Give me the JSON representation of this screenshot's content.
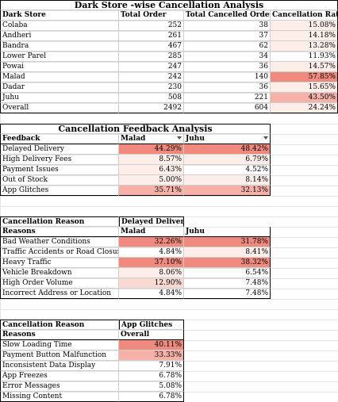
{
  "table1": {
    "title": "Dark Store -wise Cancellation Analysis",
    "headers": [
      "Dark Store",
      "Total Order",
      "Total Cancelled Orders",
      "Cancellation Rate"
    ],
    "rows": [
      [
        "Colaba",
        "252",
        "38",
        "15.08%"
      ],
      [
        "Andheri",
        "261",
        "37",
        "14.18%"
      ],
      [
        "Bandra",
        "467",
        "62",
        "13.28%"
      ],
      [
        "Lower Parel",
        "285",
        "34",
        "11.93%"
      ],
      [
        "Powai",
        "247",
        "36",
        "14.57%"
      ],
      [
        "Malad",
        "242",
        "140",
        "57.85%"
      ],
      [
        "Dadar",
        "230",
        "36",
        "15.65%"
      ],
      [
        "Juhu",
        "508",
        "221",
        "43.50%"
      ],
      [
        "Overall",
        "2492",
        "604",
        "24.24%"
      ]
    ]
  },
  "table2": {
    "title": "Cancellation Feedback Analysis",
    "headers": [
      "Feedback",
      "Malad",
      "Juhu"
    ],
    "rows": [
      [
        "Delayed Delivery",
        "44.29%",
        "48.42%"
      ],
      [
        "High Delivery Fees",
        "8.57%",
        "6.79%"
      ],
      [
        "Payment Issues",
        "6.43%",
        "4.52%"
      ],
      [
        "Out of Stock",
        "5.00%",
        "8.14%"
      ],
      [
        "App Glitches",
        "35.71%",
        "32.13%"
      ]
    ]
  },
  "table3": {
    "head1": [
      "Cancellation Reason",
      "Delayed Delivery"
    ],
    "headers": [
      "Reasons",
      "Malad",
      "Juhu"
    ],
    "rows": [
      [
        "Bad Weather Conditions",
        "32.26%",
        "31.78%"
      ],
      [
        "Traffic Accidents or Road Closures",
        "4.84%",
        "8.41%"
      ],
      [
        "Heavy Traffic",
        "37.10%",
        "38.32%"
      ],
      [
        "Vehicle Breakdown",
        "8.06%",
        "6.54%"
      ],
      [
        "High Order Volume",
        "12.90%",
        "7.48%"
      ],
      [
        "Incorrect Address or Location",
        "4.84%",
        "7.48%"
      ]
    ]
  },
  "table4": {
    "head1": [
      "Cancellation Reason",
      "App Glitches"
    ],
    "headers": [
      "Reasons",
      "Overall"
    ],
    "rows": [
      [
        "Slow Loading Time",
        "40.11%"
      ],
      [
        "Payment Button Malfunction",
        "33.33%"
      ],
      [
        "Inconsistent Data Display",
        "7.91%"
      ],
      [
        "App Freezes",
        "6.78%"
      ],
      [
        "Error Messages",
        "5.08%"
      ],
      [
        "Missing Content",
        "6.78%"
      ]
    ]
  }
}
